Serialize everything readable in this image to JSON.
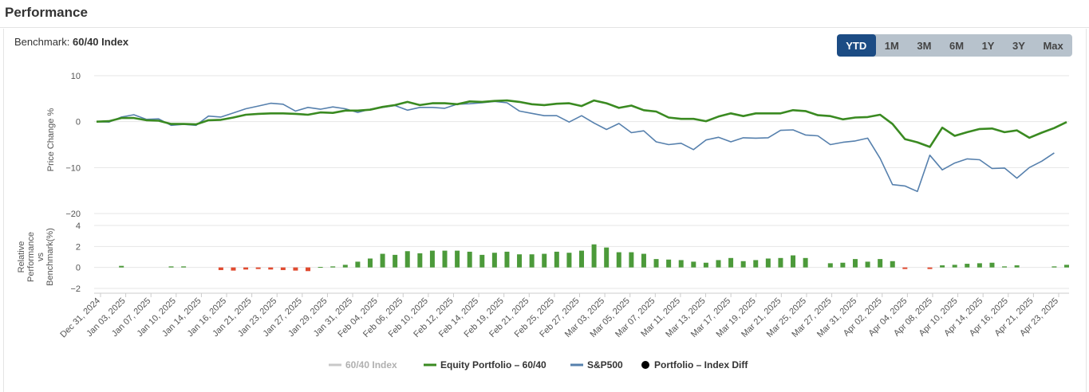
{
  "page": {
    "title": "Performance",
    "benchmark_label": "Benchmark:",
    "benchmark_value": "60/40 Index"
  },
  "range_buttons": [
    {
      "label": "YTD",
      "active": true
    },
    {
      "label": "1M",
      "active": false
    },
    {
      "label": "3M",
      "active": false
    },
    {
      "label": "6M",
      "active": false
    },
    {
      "label": "1Y",
      "active": false
    },
    {
      "label": "3Y",
      "active": false
    },
    {
      "label": "Max",
      "active": false
    }
  ],
  "colors": {
    "equity": "#3a8a21",
    "sp500": "#5680ad",
    "index": "#c8c8c8",
    "bar_pos": "#4c9a3a",
    "bar_neg": "#e04a2f",
    "diff_marker": "#000000"
  },
  "chart_data": [
    {
      "type": "line",
      "ylabel": "Price Change %",
      "ylim": [
        -20,
        10
      ],
      "yticks": [
        "10",
        "0",
        "−10",
        "−20"
      ],
      "ytick_values": [
        10,
        0,
        -10,
        -20
      ],
      "series": [
        {
          "name": "Equity Portfolio – 60/40",
          "values": [
            0.0,
            0.1,
            0.8,
            0.8,
            0.3,
            0.2,
            -0.5,
            -0.5,
            -0.6,
            0.3,
            0.4,
            0.9,
            1.5,
            1.7,
            1.8,
            1.8,
            1.7,
            1.5,
            2.0,
            1.9,
            2.4,
            2.4,
            2.6,
            3.2,
            3.6,
            4.3,
            3.6,
            4.0,
            4.0,
            3.8,
            4.4,
            4.3,
            4.5,
            4.6,
            4.3,
            3.8,
            3.6,
            3.9,
            4.0,
            3.4,
            4.6,
            4.0,
            3.0,
            3.5,
            2.5,
            2.2,
            0.9,
            0.6,
            0.6,
            0.1,
            1.1,
            1.8,
            1.2,
            1.8,
            1.8,
            1.8,
            2.5,
            2.3,
            1.4,
            1.2,
            0.5,
            0.9,
            1.0,
            1.5,
            -0.5,
            -3.8,
            -4.5,
            -5.5,
            -1.3,
            -3.1,
            -2.3,
            -1.6,
            -1.5,
            -2.3,
            -1.9,
            -3.5,
            -2.4,
            -1.4,
            -0.1
          ]
        },
        {
          "name": "S&P500",
          "values": [
            0.0,
            -0.1,
            1.0,
            1.5,
            0.5,
            0.6,
            -0.8,
            -0.6,
            -0.8,
            1.2,
            1.0,
            1.9,
            2.8,
            3.4,
            4.0,
            3.8,
            2.3,
            3.1,
            2.7,
            3.2,
            2.8,
            2.0,
            2.7,
            3.1,
            3.5,
            2.5,
            3.1,
            3.1,
            2.9,
            3.8,
            3.9,
            4.1,
            4.4,
            4.1,
            2.3,
            1.8,
            1.3,
            1.3,
            -0.1,
            1.3,
            -0.3,
            -1.7,
            -0.4,
            -2.4,
            -2.0,
            -4.4,
            -5.0,
            -4.7,
            -6.1,
            -4.0,
            -3.4,
            -4.4,
            -3.5,
            -3.6,
            -3.5,
            -1.9,
            -1.8,
            -2.9,
            -3.1,
            -5.0,
            -4.5,
            -4.2,
            -3.6,
            -8.0,
            -13.7,
            -14.0,
            -15.2,
            -7.3,
            -10.5,
            -9.0,
            -8.1,
            -8.3,
            -10.2,
            -10.1,
            -12.3,
            -10.0,
            -8.6,
            -6.8
          ]
        }
      ]
    },
    {
      "type": "bar",
      "ylabel": "Relative Performance vs Benchmark(%)",
      "ylim": [
        -2,
        4
      ],
      "yticks": [
        "4",
        "2",
        "0",
        "−2"
      ],
      "ytick_values": [
        4,
        2,
        0,
        -2
      ],
      "values": [
        0,
        0,
        0.15,
        0,
        0,
        0,
        0.1,
        0.1,
        0,
        0,
        -0.25,
        -0.3,
        -0.2,
        -0.15,
        -0.2,
        -0.25,
        -0.3,
        -0.35,
        0.05,
        0.1,
        0.25,
        0.55,
        0.85,
        1.3,
        1.2,
        1.55,
        1.35,
        1.6,
        1.6,
        1.6,
        1.5,
        1.2,
        1.4,
        1.5,
        1.25,
        1.25,
        1.3,
        1.5,
        1.4,
        1.6,
        2.2,
        1.9,
        1.45,
        1.45,
        1.3,
        0.8,
        0.75,
        0.7,
        0.55,
        0.45,
        0.7,
        0.9,
        0.6,
        0.7,
        0.85,
        0.9,
        1.15,
        0.9,
        0,
        0.4,
        0.45,
        0.8,
        0.55,
        0.8,
        0.6,
        -0.15,
        0,
        -0.15,
        0.2,
        0.25,
        0.35,
        0.4,
        0.45,
        0.1,
        0.2,
        0,
        0,
        0.1,
        0.25
      ]
    }
  ],
  "categories": [
    "Dec 31, 2024",
    "Jan 03, 2025",
    "Jan 07, 2025",
    "Jan 10, 2025",
    "Jan 14, 2025",
    "Jan 16, 2025",
    "Jan 21, 2025",
    "Jan 23, 2025",
    "Jan 27, 2025",
    "Jan 29, 2025",
    "Jan 31, 2025",
    "Feb 04, 2025",
    "Feb 06, 2025",
    "Feb 10, 2025",
    "Feb 12, 2025",
    "Feb 14, 2025",
    "Feb 19, 2025",
    "Feb 21, 2025",
    "Feb 25, 2025",
    "Feb 27, 2025",
    "Mar 03, 2025",
    "Mar 05, 2025",
    "Mar 07, 2025",
    "Mar 11, 2025",
    "Mar 13, 2025",
    "Mar 17, 2025",
    "Mar 19, 2025",
    "Mar 21, 2025",
    "Mar 25, 2025",
    "Mar 27, 2025",
    "Mar 31, 2025",
    "Apr 02, 2025",
    "Apr 04, 2025",
    "Apr 08, 2025",
    "Apr 10, 2025",
    "Apr 14, 2025",
    "Apr 16, 2025",
    "Apr 21, 2025",
    "Apr 23, 2025"
  ],
  "legend": [
    {
      "label": "60/40 Index",
      "kind": "line",
      "color": "#c8c8c8",
      "muted": true
    },
    {
      "label": "Equity Portfolio – 60/40",
      "kind": "line",
      "color": "#3a8a21",
      "muted": false
    },
    {
      "label": "S&P500",
      "kind": "line",
      "color": "#5680ad",
      "muted": false
    },
    {
      "label": "Portfolio – Index Diff",
      "kind": "dot",
      "color": "#000000",
      "muted": false
    }
  ]
}
